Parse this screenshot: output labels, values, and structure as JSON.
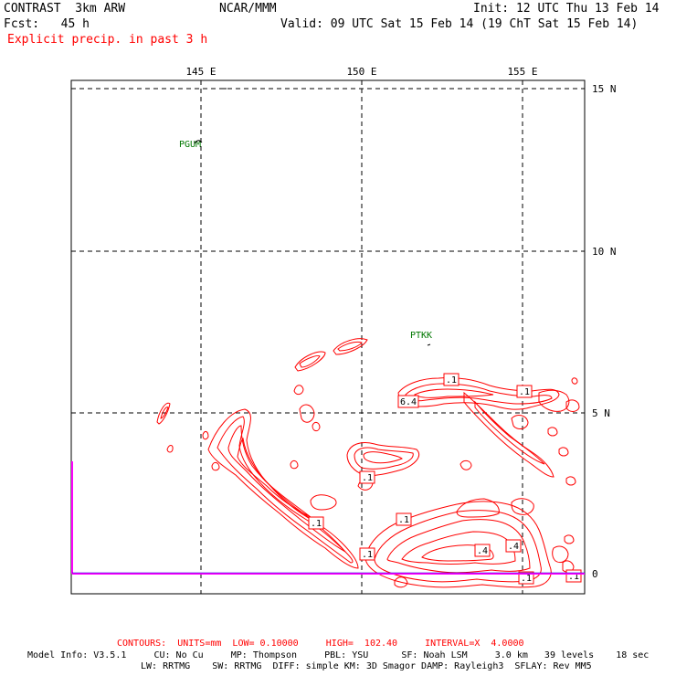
{
  "header": {
    "title": "CONTRAST  3km ARW",
    "center": "NCAR/MMM",
    "init": "Init: 12 UTC Thu 13 Feb 14",
    "fcst": "Fcst:   45 h",
    "valid": "Valid: 09 UTC Sat 15 Feb 14 (19 ChT Sat 15 Feb 14)",
    "field": "Explicit precip. in past 3 h"
  },
  "map": {
    "lon_labels": [
      "145 E",
      "150 E",
      "155 E"
    ],
    "lat_labels": [
      "15 N",
      "10 N",
      "5 N",
      "0"
    ],
    "stations": [
      {
        "id": "PGUM"
      },
      {
        "id": "PTKK"
      }
    ],
    "contour_labels": [
      ".1",
      "6.4",
      ".1",
      ".1",
      ".1",
      ".1",
      ".1",
      ".4",
      ".4",
      ".1",
      ".1"
    ],
    "colors": {
      "contour": "#ff0000",
      "station": "#007700",
      "boundary": "#ff00ff",
      "grid": "#000000"
    }
  },
  "footer": {
    "contours": "CONTOURS:  UNITS=mm  LOW= 0.10000     HIGH=  102.40     INTERVAL=X  4.0000",
    "model_line1": "Model Info: V3.5.1     CU: No Cu     MP: Thompson     PBL: YSU      SF: Noah LSM     3.0 km   39 levels    18 sec",
    "model_line2": "LW: RRTMG    SW: RRTMG  DIFF: simple KM: 3D Smagor DAMP: Rayleigh3  SFLAY: Rev MM5"
  }
}
